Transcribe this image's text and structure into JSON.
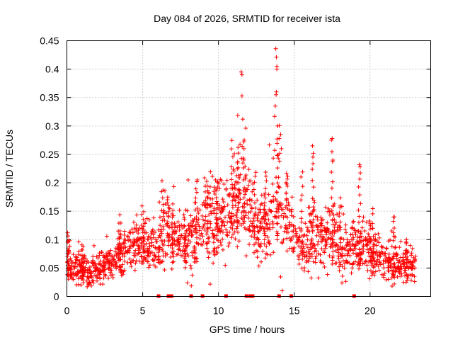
{
  "chart_data": {
    "type": "scatter",
    "title": "Day 084 of 2026, SRMTID for receiver ista",
    "xlabel": "GPS time / hours",
    "ylabel": "SRMTID / TECUs",
    "xlim": [
      0,
      24
    ],
    "ylim": [
      0,
      0.45
    ],
    "xticks": [
      0,
      5,
      10,
      15,
      20
    ],
    "xtick_labels": [
      "0",
      "5",
      "10",
      "15",
      "20"
    ],
    "yticks": [
      0,
      0.05,
      0.1,
      0.15,
      0.2,
      0.25,
      0.3,
      0.35,
      0.4,
      0.45
    ],
    "ytick_labels": [
      "0",
      "0.05",
      "0.1",
      "0.15",
      "0.2",
      "0.25",
      "0.3",
      "0.35",
      "0.4",
      "0.45"
    ],
    "grid": true,
    "marker": "+",
    "color": "#ff0000",
    "baseline_marker": "square",
    "series": [
      {
        "name": "SRMTID",
        "envelope_hours": [
          0,
          0.5,
          1,
          1.5,
          2,
          2.5,
          3,
          3.5,
          4,
          4.5,
          5,
          5.5,
          6,
          6.5,
          7,
          7.5,
          8,
          8.5,
          9,
          9.5,
          10,
          10.5,
          11,
          11.5,
          12,
          12.5,
          13,
          13.5,
          14,
          14.5,
          15,
          15.5,
          16,
          16.5,
          17,
          17.5,
          18,
          18.5,
          19,
          19.5,
          20,
          20.5,
          21,
          21.5,
          22,
          22.5,
          23
        ],
        "envelope_center": [
          0.06,
          0.05,
          0.05,
          0.045,
          0.05,
          0.055,
          0.06,
          0.07,
          0.085,
          0.09,
          0.095,
          0.09,
          0.095,
          0.11,
          0.1,
          0.1,
          0.09,
          0.11,
          0.13,
          0.14,
          0.13,
          0.14,
          0.16,
          0.17,
          0.16,
          0.11,
          0.12,
          0.14,
          0.17,
          0.14,
          0.1,
          0.09,
          0.1,
          0.1,
          0.11,
          0.1,
          0.09,
          0.085,
          0.08,
          0.085,
          0.08,
          0.07,
          0.06,
          0.055,
          0.055,
          0.05,
          0.05
        ],
        "envelope_spread": [
          0.02,
          0.02,
          0.02,
          0.02,
          0.02,
          0.02,
          0.02,
          0.025,
          0.025,
          0.025,
          0.025,
          0.03,
          0.03,
          0.04,
          0.04,
          0.035,
          0.035,
          0.04,
          0.045,
          0.05,
          0.04,
          0.045,
          0.055,
          0.06,
          0.05,
          0.03,
          0.035,
          0.045,
          0.06,
          0.045,
          0.035,
          0.035,
          0.04,
          0.04,
          0.045,
          0.04,
          0.035,
          0.03,
          0.03,
          0.03,
          0.03,
          0.025,
          0.02,
          0.02,
          0.02,
          0.02,
          0.02
        ],
        "notable_points": [
          {
            "x": 0.05,
            "y": 0.112
          },
          {
            "x": 8.0,
            "y": 0.205
          },
          {
            "x": 8.6,
            "y": 0.205
          },
          {
            "x": 9.8,
            "y": 0.205
          },
          {
            "x": 11.5,
            "y": 0.395
          },
          {
            "x": 11.55,
            "y": 0.39
          },
          {
            "x": 11.55,
            "y": 0.353
          },
          {
            "x": 11.6,
            "y": 0.312
          },
          {
            "x": 11.7,
            "y": 0.275
          },
          {
            "x": 13.78,
            "y": 0.436
          },
          {
            "x": 13.82,
            "y": 0.421
          },
          {
            "x": 13.85,
            "y": 0.405
          },
          {
            "x": 13.85,
            "y": 0.4
          },
          {
            "x": 13.8,
            "y": 0.355
          },
          {
            "x": 13.82,
            "y": 0.36
          },
          {
            "x": 13.75,
            "y": 0.335
          },
          {
            "x": 13.7,
            "y": 0.317
          },
          {
            "x": 13.9,
            "y": 0.3
          },
          {
            "x": 14.1,
            "y": 0.285
          },
          {
            "x": 14.0,
            "y": 0.278
          },
          {
            "x": 14.15,
            "y": 0.26
          },
          {
            "x": 14.05,
            "y": 0.252
          },
          {
            "x": 14.2,
            "y": 0.01
          },
          {
            "x": 16.2,
            "y": 0.265
          },
          {
            "x": 16.25,
            "y": 0.252
          },
          {
            "x": 17.5,
            "y": 0.278
          },
          {
            "x": 17.45,
            "y": 0.275
          },
          {
            "x": 17.55,
            "y": 0.24
          },
          {
            "x": 19.3,
            "y": 0.232
          },
          {
            "x": 19.35,
            "y": 0.228
          },
          {
            "x": 21.6,
            "y": 0.14
          },
          {
            "x": 22.4,
            "y": 0.1
          }
        ]
      }
    ],
    "zero_points_hours": [
      6.05,
      6.7,
      6.9,
      8.2,
      8.95,
      10.5,
      11.85,
      12.1,
      12.25,
      14.0,
      14.8,
      18.95
    ]
  }
}
